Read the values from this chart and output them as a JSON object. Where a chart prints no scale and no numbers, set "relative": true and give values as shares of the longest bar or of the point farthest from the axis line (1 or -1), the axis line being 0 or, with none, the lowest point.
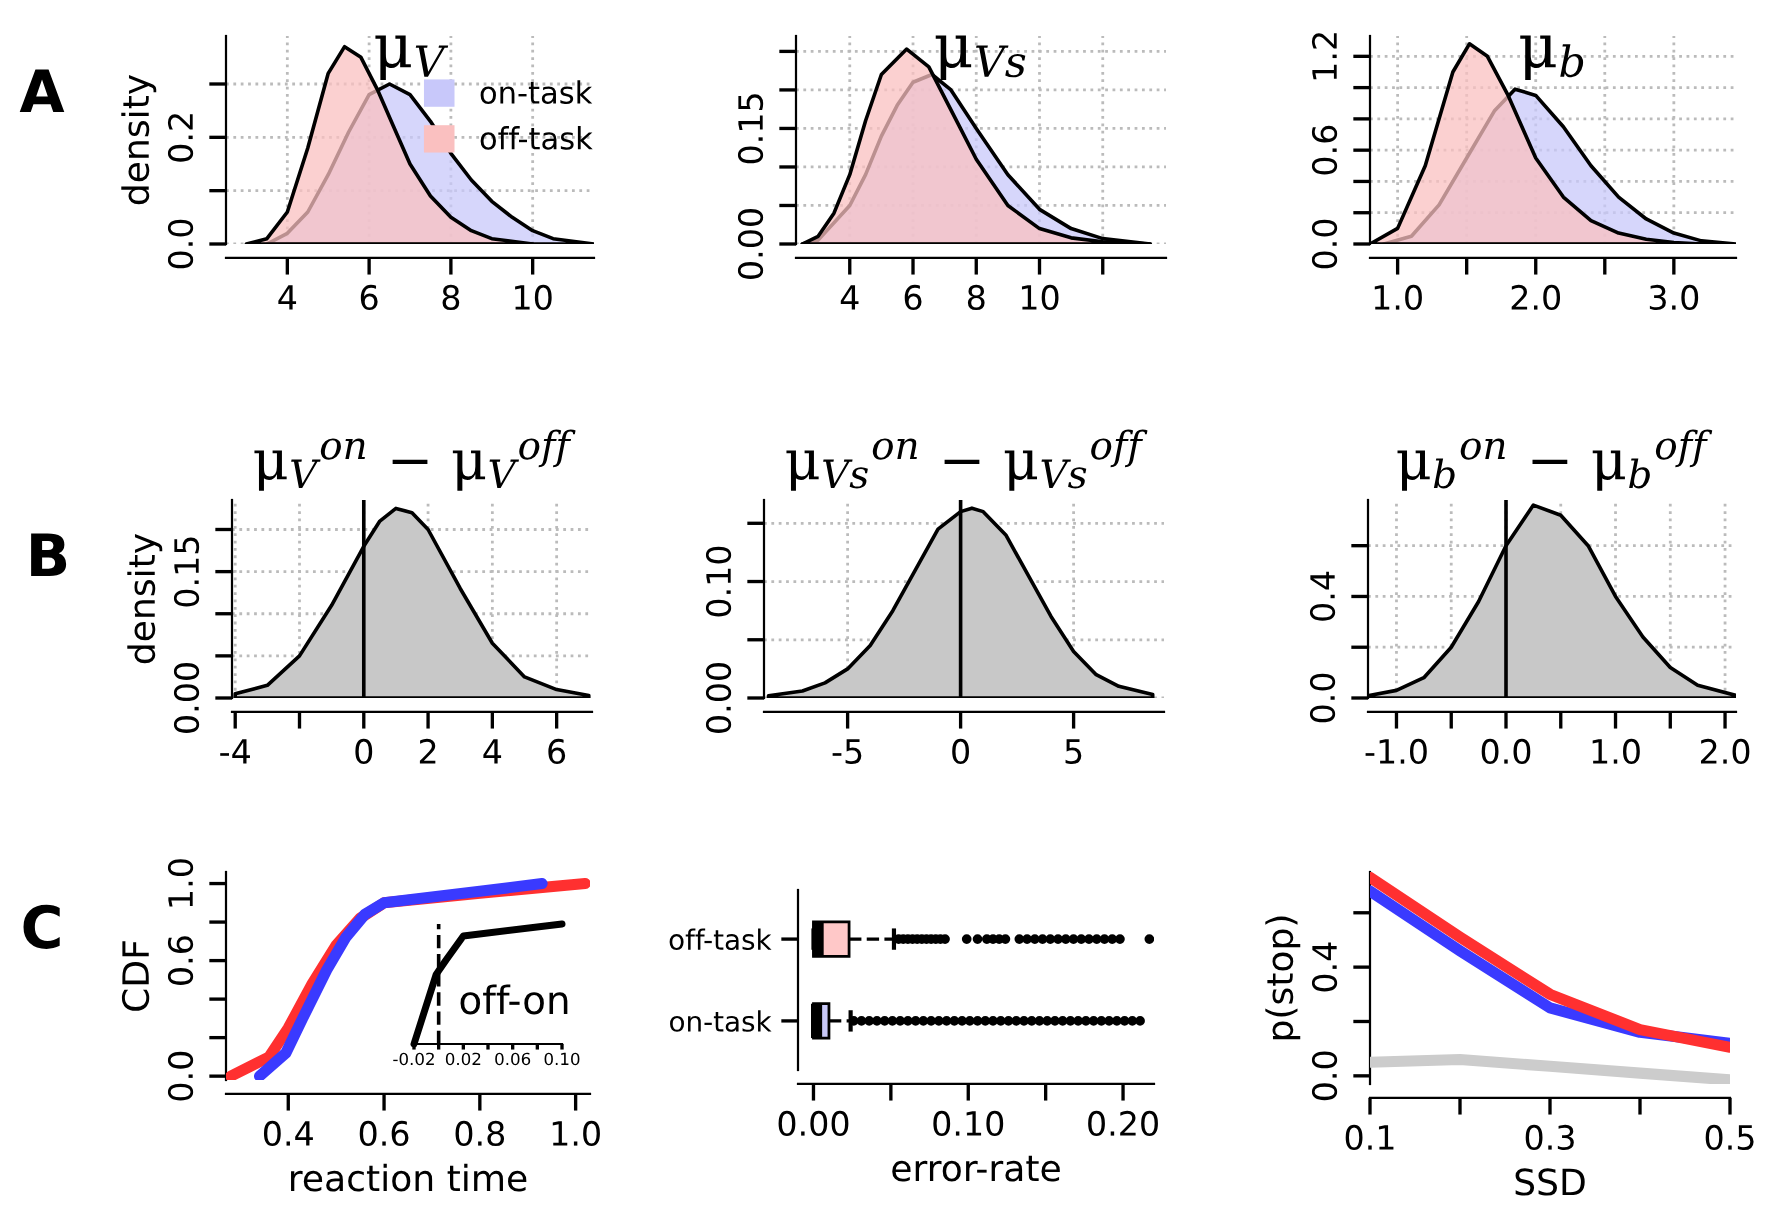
{
  "chart_data": [
    {
      "type": "area",
      "title": "μ$_{V}$",
      "ylabel": "density",
      "annotations": [
        "A"
      ],
      "legend": "top right",
      "grid": true,
      "xlim": [
        2.5,
        11.5
      ],
      "ylim": [
        0,
        0.39
      ],
      "xticks": [
        4,
        6,
        8,
        10
      ],
      "yticks": [
        {
          "value": 0,
          "label": "0.0"
        },
        {
          "value": 0.1,
          "label": null
        },
        0.2,
        {
          "value": 0.3,
          "label": null
        }
      ],
      "series": [
        {
          "name": "on-task",
          "color": "#c8c8fa",
          "x": [
            3.5,
            4.0,
            4.5,
            5.0,
            5.5,
            6.0,
            6.5,
            7.0,
            7.5,
            8.0,
            8.5,
            9.0,
            9.5,
            10.0,
            10.5,
            11.5
          ],
          "values": [
            0,
            0.02,
            0.06,
            0.13,
            0.21,
            0.28,
            0.3,
            0.28,
            0.23,
            0.17,
            0.12,
            0.08,
            0.05,
            0.025,
            0.01,
            0
          ]
        },
        {
          "name": "off-task",
          "color": "#fac0c0",
          "x": [
            3.0,
            3.5,
            4.0,
            4.5,
            5.0,
            5.4,
            5.8,
            6.2,
            6.6,
            7.0,
            7.5,
            8.0,
            8.5,
            9.0,
            10.0
          ],
          "values": [
            0,
            0.01,
            0.06,
            0.18,
            0.32,
            0.37,
            0.35,
            0.29,
            0.22,
            0.15,
            0.09,
            0.05,
            0.025,
            0.01,
            0
          ]
        }
      ]
    },
    {
      "type": "area",
      "title": "μ$_{Vs}$",
      "grid": true,
      "xlim": [
        2.3,
        14
      ],
      "ylim": [
        0,
        0.27
      ],
      "xticks": [
        4,
        6,
        8,
        10,
        {
          "value": 12,
          "label": null
        }
      ],
      "yticks": [
        {
          "value": 0,
          "label": "0.00"
        },
        {
          "value": 0.05,
          "label": null
        },
        {
          "value": 0.1,
          "label": null
        },
        0.15,
        {
          "value": 0.2,
          "label": null
        },
        {
          "value": 0.25,
          "label": null
        }
      ],
      "series": [
        {
          "color": "#c8c8fa",
          "x": [
            2.5,
            3,
            4,
            4.5,
            5,
            5.5,
            6,
            6.6,
            7.2,
            8,
            9,
            10,
            11,
            12,
            13.5
          ],
          "values": [
            0,
            0.005,
            0.05,
            0.09,
            0.14,
            0.18,
            0.21,
            0.22,
            0.2,
            0.15,
            0.09,
            0.045,
            0.02,
            0.007,
            0
          ]
        },
        {
          "color": "#fac0c0",
          "x": [
            2.5,
            3,
            3.5,
            4,
            4.5,
            5,
            5.8,
            6.5,
            7,
            7.5,
            8,
            9,
            10,
            11,
            12,
            13.5
          ],
          "values": [
            0,
            0.01,
            0.04,
            0.09,
            0.16,
            0.22,
            0.253,
            0.23,
            0.19,
            0.15,
            0.11,
            0.05,
            0.02,
            0.008,
            0.003,
            0
          ]
        }
      ]
    },
    {
      "type": "area",
      "title": "μ$_{b}$",
      "grid": true,
      "xlim": [
        0.8,
        3.45
      ],
      "ylim": [
        0,
        1.33
      ],
      "xticks": [
        {
          "value": 1,
          "label": "1.0"
        },
        {
          "value": 1.5,
          "label": null
        },
        {
          "value": 2,
          "label": "2.0"
        },
        {
          "value": 2.5,
          "label": null
        },
        {
          "value": 3,
          "label": "3.0"
        }
      ],
      "yticks": [
        {
          "value": 0,
          "label": "0.0"
        },
        {
          "value": 0.2,
          "label": null
        },
        {
          "value": 0.4,
          "label": null
        },
        0.6,
        {
          "value": 0.8,
          "label": null
        },
        {
          "value": 1.0,
          "label": null
        },
        1.2
      ],
      "series": [
        {
          "color": "#c8c8fa",
          "x": [
            0.9,
            1.1,
            1.3,
            1.5,
            1.7,
            1.85,
            2.0,
            2.2,
            2.4,
            2.6,
            2.8,
            3.0,
            3.2,
            3.45
          ],
          "values": [
            0,
            0.05,
            0.25,
            0.55,
            0.85,
            0.99,
            0.95,
            0.75,
            0.5,
            0.3,
            0.16,
            0.07,
            0.02,
            0
          ]
        },
        {
          "color": "#fac0c0",
          "x": [
            0.8,
            1.0,
            1.2,
            1.4,
            1.52,
            1.65,
            1.8,
            2.0,
            2.2,
            2.4,
            2.6,
            2.8,
            3.0,
            3.2
          ],
          "values": [
            0,
            0.1,
            0.5,
            1.1,
            1.28,
            1.2,
            0.95,
            0.55,
            0.3,
            0.15,
            0.07,
            0.03,
            0.01,
            0
          ]
        }
      ]
    },
    {
      "type": "area",
      "title": "μ$_{V}$$^{on}$ − μ$_{V}$$^{off}$",
      "ylabel": "density",
      "annotations": [
        "B"
      ],
      "grid": true,
      "xlim": [
        -4.1,
        7.1
      ],
      "ylim": [
        0,
        0.235
      ],
      "xticks": [
        -4,
        {
          "value": -2,
          "label": null
        },
        0,
        2,
        4,
        6
      ],
      "yticks": [
        {
          "value": 0,
          "label": "0.00"
        },
        {
          "value": 0.05,
          "label": null
        },
        {
          "value": 0.1,
          "label": null
        },
        0.15,
        {
          "value": 0.2,
          "label": null
        }
      ],
      "ref_lines": [
        {
          "axis": "x",
          "value": 0
        }
      ],
      "series": [
        {
          "color": "#c8c8c8",
          "x": [
            -4,
            -3,
            -2,
            -1,
            0,
            0.5,
            1,
            1.5,
            2,
            3,
            4,
            5,
            6,
            7
          ],
          "values": [
            0.005,
            0.015,
            0.05,
            0.11,
            0.18,
            0.21,
            0.225,
            0.22,
            0.2,
            0.13,
            0.065,
            0.025,
            0.01,
            0.003
          ]
        }
      ]
    },
    {
      "type": "area",
      "title": "μ$_{Vs}$$^{on}$ − μ$_{Vs}$$^{off}$",
      "grid": true,
      "xlim": [
        -8.7,
        9
      ],
      "ylim": [
        0,
        0.17
      ],
      "xticks": [
        -5,
        0,
        5
      ],
      "yticks": [
        {
          "value": 0,
          "label": "0.00"
        },
        {
          "value": 0.05,
          "label": null
        },
        {
          "value": 0.1,
          "label": "0.10"
        },
        {
          "value": 0.15,
          "label": null
        }
      ],
      "ref_lines": [
        {
          "axis": "x",
          "value": 0
        }
      ],
      "series": [
        {
          "color": "#c8c8c8",
          "x": [
            -8.5,
            -7,
            -6,
            -5,
            -4,
            -3,
            -2,
            -1,
            0,
            0.5,
            1,
            2,
            3,
            4,
            5,
            6,
            7,
            8.5
          ],
          "values": [
            0.002,
            0.006,
            0.013,
            0.025,
            0.045,
            0.075,
            0.11,
            0.145,
            0.16,
            0.163,
            0.16,
            0.14,
            0.105,
            0.07,
            0.04,
            0.02,
            0.01,
            0.003
          ]
        }
      ]
    },
    {
      "type": "area",
      "title": "μ$_{b}$$^{on}$ − μ$_{b}$$^{off}$",
      "grid": true,
      "xlim": [
        -1.26,
        2.1
      ],
      "ylim": [
        0,
        0.78
      ],
      "xticks": [
        {
          "value": -1,
          "label": "-1.0"
        },
        {
          "value": -0.5,
          "label": null
        },
        {
          "value": 0,
          "label": "0.0"
        },
        {
          "value": 0.5,
          "label": null
        },
        {
          "value": 1,
          "label": "1.0"
        },
        {
          "value": 1.5,
          "label": null
        },
        {
          "value": 2,
          "label": "2.0"
        }
      ],
      "yticks": [
        {
          "value": 0,
          "label": "0.0"
        },
        {
          "value": 0.2,
          "label": null
        },
        0.4,
        {
          "value": 0.6,
          "label": null
        }
      ],
      "ref_lines": [
        {
          "axis": "x",
          "value": 0
        }
      ],
      "series": [
        {
          "color": "#c8c8c8",
          "x": [
            -1.25,
            -1,
            -0.75,
            -0.5,
            -0.25,
            0,
            0.25,
            0.5,
            0.75,
            1,
            1.25,
            1.5,
            1.75,
            2.1
          ],
          "values": [
            0.01,
            0.03,
            0.08,
            0.2,
            0.38,
            0.6,
            0.76,
            0.72,
            0.6,
            0.4,
            0.24,
            0.12,
            0.05,
            0.01
          ]
        }
      ]
    },
    {
      "type": "line",
      "xlabel": "reaction time",
      "ylabel": "CDF",
      "annotations": [
        "C"
      ],
      "xlim": [
        0.27,
        1.03
      ],
      "ylim": [
        -0.02,
        1.06
      ],
      "xticks": [
        0.4,
        0.6,
        0.8,
        {
          "value": 1,
          "label": "1.0"
        }
      ],
      "yticks": [
        {
          "value": 0,
          "label": "0.0"
        },
        {
          "value": 0.2,
          "label": null
        },
        {
          "value": 0.4,
          "label": null
        },
        0.6,
        {
          "value": 0.8,
          "label": null
        },
        {
          "value": 1,
          "label": "1.0"
        }
      ],
      "series": [
        {
          "color": "#ff3030",
          "x": [
            0.28,
            0.36,
            0.4,
            0.45,
            0.5,
            0.55,
            0.6,
            0.8,
            1.02
          ],
          "values": [
            0.0,
            0.1,
            0.25,
            0.48,
            0.68,
            0.82,
            0.9,
            0.95,
            1.0
          ]
        },
        {
          "color": "#3a3aff",
          "x": [
            0.34,
            0.395,
            0.43,
            0.48,
            0.52,
            0.56,
            0.6,
            0.8,
            0.93
          ],
          "values": [
            0.0,
            0.12,
            0.3,
            0.55,
            0.72,
            0.84,
            0.9,
            0.96,
            1.0
          ]
        }
      ]
    },
    {
      "type": "line",
      "relative": true,
      "tick_labels": "x",
      "annotations": [
        "off-on"
      ],
      "xlim": [
        -0.02,
        0.1
      ],
      "xticks": [
        -0.02,
        {
          "value": 0,
          "label": null
        },
        0.02,
        {
          "value": 0.04,
          "label": null
        },
        0.06,
        {
          "value": 0.08,
          "label": null
        },
        {
          "value": 0.1,
          "label": "0.10"
        }
      ],
      "ref_lines": [
        {
          "axis": "x",
          "value": 0,
          "line_style": "dashed"
        }
      ],
      "series": [
        {
          "color": "#000000",
          "x": [
            -0.02,
            -0.002,
            0.006,
            0.02,
            0.1
          ],
          "values": [
            0,
            0.58,
            0.7,
            0.9,
            1.0
          ]
        }
      ]
    },
    {
      "type": "box",
      "orientation": "horizontal",
      "xlabel": "error-rate",
      "categories": [
        "off-task",
        "on-task"
      ],
      "colors": [
        "#ffc8c8",
        "#c8c8f8"
      ],
      "xlim": [
        -0.01,
        0.22
      ],
      "xticks": [
        {
          "value": 0,
          "label": "0.00"
        },
        {
          "value": 0.05,
          "label": null
        },
        {
          "value": 0.1,
          "label": "0.10"
        },
        {
          "value": 0.15,
          "label": null
        },
        {
          "value": 0.2,
          "label": "0.20"
        }
      ],
      "boxes": [
        {
          "low": 0,
          "q1": 0,
          "median": 0.003,
          "q3": 0.023,
          "high": 0.052,
          "outliers": [
            0.055,
            0.058,
            0.061,
            0.064,
            0.067,
            0.07,
            0.073,
            0.076,
            0.079,
            0.082,
            0.085,
            0.099,
            0.106,
            0.112,
            0.116,
            0.12,
            0.124,
            0.133,
            0.138,
            0.143,
            0.148,
            0.153,
            0.158,
            0.163,
            0.168,
            0.173,
            0.178,
            0.183,
            0.188,
            0.193,
            0.198,
            0.217
          ]
        },
        {
          "low": 0,
          "q1": 0,
          "median": 0.002,
          "q3": 0.01,
          "high": 0.024,
          "outliers": [
            0.026,
            0.031,
            0.036,
            0.041,
            0.046,
            0.051,
            0.056,
            0.061,
            0.066,
            0.071,
            0.076,
            0.081,
            0.086,
            0.091,
            0.096,
            0.101,
            0.106,
            0.111,
            0.116,
            0.121,
            0.126,
            0.131,
            0.136,
            0.141,
            0.146,
            0.151,
            0.156,
            0.161,
            0.166,
            0.171,
            0.176,
            0.181,
            0.186,
            0.191,
            0.196,
            0.201,
            0.206,
            0.211
          ]
        }
      ]
    },
    {
      "type": "line",
      "xlabel": "SSD",
      "ylabel": "p(stop)",
      "xlim": [
        0.1,
        0.5
      ],
      "ylim": [
        -0.03,
        0.75
      ],
      "xticks": [
        0.1,
        {
          "value": 0.2,
          "label": null
        },
        0.3,
        {
          "value": 0.4,
          "label": null
        },
        0.5
      ],
      "yticks": [
        {
          "value": 0,
          "label": "0.0"
        },
        {
          "value": 0.2,
          "label": null
        },
        0.4,
        {
          "value": 0.6,
          "label": null
        }
      ],
      "series": [
        {
          "color": "#cccccc",
          "x": [
            0.1,
            0.2,
            0.3,
            0.4,
            0.5
          ],
          "values": [
            0.05,
            0.06,
            0.035,
            0.01,
            -0.015
          ]
        },
        {
          "color": "#3a3aff",
          "x": [
            0.1,
            0.2,
            0.3,
            0.4,
            0.5
          ],
          "values": [
            0.68,
            0.46,
            0.25,
            0.16,
            0.12
          ]
        },
        {
          "color": "#ff3030",
          "x": [
            0.1,
            0.2,
            0.3,
            0.4,
            0.5
          ],
          "values": [
            0.73,
            0.51,
            0.3,
            0.17,
            0.105
          ]
        }
      ]
    }
  ]
}
